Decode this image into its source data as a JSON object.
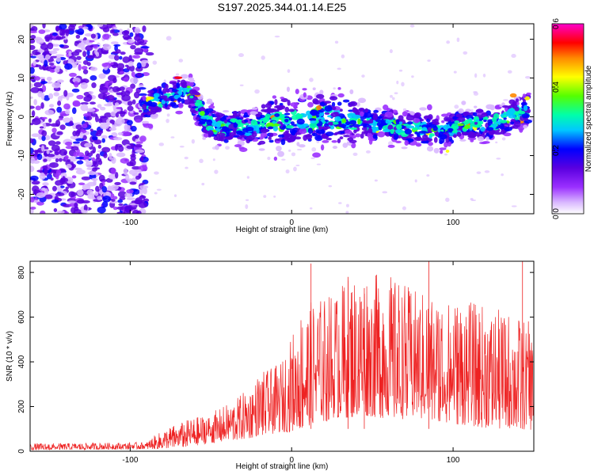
{
  "title": "S197.2025.344.01.14.E25",
  "chart_data": [
    {
      "type": "heatmap",
      "name": "spectrogram",
      "xlabel": "Height of straight line (km)",
      "ylabel": "Frequency (Hz)",
      "xlim": [
        -162,
        150
      ],
      "ylim": [
        -25,
        24
      ],
      "xticks": [
        -100,
        0,
        100
      ],
      "xtick_labels": [
        "-100",
        "0",
        "100"
      ],
      "yticks": [
        -20,
        -10,
        0,
        10,
        20
      ],
      "ytick_labels": [
        "-20",
        "-10",
        "0",
        "10",
        "20"
      ],
      "noise_region_x": [
        -162,
        -90
      ],
      "signal_track": {
        "x": [
          -92,
          -85,
          -75,
          -65,
          -60,
          -55,
          -50,
          -45,
          -40,
          -35,
          -30,
          -25,
          -20,
          -10,
          0,
          10,
          20,
          30,
          40,
          50,
          60,
          70,
          80,
          90,
          100,
          110,
          120,
          130,
          140,
          147
        ],
        "y": [
          2,
          4,
          5,
          7,
          4,
          0,
          -2,
          -3,
          -3,
          -2,
          -3,
          -3,
          -2,
          -1,
          -1,
          -1,
          0,
          -1,
          -1,
          -2,
          -2,
          -3,
          -3,
          -4,
          -3,
          -2,
          -2,
          -1,
          1,
          2
        ]
      },
      "colorbar": {
        "label": "Normalized spectral amplitude",
        "range": [
          0.0,
          0.6
        ],
        "ticks": [
          0.0,
          0.2,
          0.4,
          0.6
        ],
        "tick_labels": [
          "0.0",
          "0.2",
          "0.4",
          "0.6"
        ],
        "colors": [
          "#ffffff",
          "#d9b8ff",
          "#9b30ff",
          "#5a00e0",
          "#0000ff",
          "#00ffff",
          "#00ff66",
          "#ffff00",
          "#ff0000",
          "#ff00cc"
        ]
      }
    },
    {
      "type": "line",
      "name": "snr",
      "xlabel": "Height of straight line (km)",
      "ylabel": "SNR (10 * v/v)",
      "xlim": [
        -162,
        150
      ],
      "ylim": [
        0,
        850
      ],
      "xticks": [
        -100,
        0,
        100
      ],
      "xtick_labels": [
        "-100",
        "0",
        "100"
      ],
      "yticks": [
        0,
        200,
        400,
        600,
        800
      ],
      "ytick_labels": [
        "0",
        "200",
        "400",
        "600",
        "800"
      ],
      "color": "#ee2222",
      "envelope": {
        "x": [
          -162,
          -90,
          -85,
          -75,
          -65,
          -55,
          -45,
          -35,
          -25,
          -20,
          -10,
          -5,
          5,
          15,
          25,
          35,
          45,
          55,
          65,
          75,
          85,
          95,
          105,
          115,
          125,
          135,
          145,
          150
        ],
        "low": [
          5,
          10,
          10,
          15,
          20,
          30,
          40,
          50,
          60,
          70,
          80,
          80,
          100,
          120,
          140,
          150,
          160,
          150,
          140,
          150,
          140,
          120,
          120,
          110,
          100,
          100,
          90,
          100
        ],
        "high": [
          35,
          40,
          70,
          110,
          140,
          160,
          190,
          230,
          300,
          350,
          380,
          420,
          620,
          690,
          720,
          780,
          800,
          800,
          780,
          730,
          700,
          690,
          680,
          660,
          640,
          620,
          600,
          550
        ]
      },
      "spikes": [
        {
          "x": 12,
          "y": 840
        },
        {
          "x": 35,
          "y": 780
        },
        {
          "x": 45,
          "y": 730
        },
        {
          "x": 85,
          "y": 850
        },
        {
          "x": 143,
          "y": 860
        }
      ]
    }
  ]
}
